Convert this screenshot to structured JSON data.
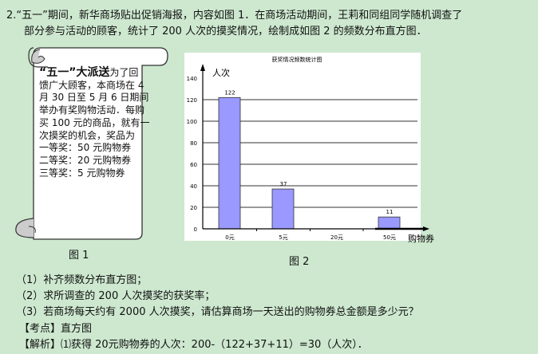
{
  "problem": {
    "line1": "2.“五一”期间，新华商场贴出促销海报，内容如图 1．在商场活动期间，王莉和同组同学随机调查了",
    "line2": "部分参与活动的顾客，统计了 200 人次的摸奖情况，绘制成如图 2 的频数分布直方图．"
  },
  "poster": {
    "headline": "“五一”大派送",
    "lines": [
      "为了回",
      "馈广大顾客，本商场在 4",
      "月 30 日至 5 月 6 日期间",
      "举办有奖购物活动．每购",
      "买 100 元的商品，就有一",
      " 次摸奖的机会，奖品为",
      "一等奖：50 元购物券",
      "二等奖：20 元购物券",
      "三等奖：5 元购物券"
    ],
    "caption": "图 1"
  },
  "chart_data": {
    "type": "bar",
    "title": "获奖情况频数统计图",
    "ylabel": "人次",
    "xlabel": "购物券",
    "categories": [
      "0元",
      "5元",
      "20元",
      "50元"
    ],
    "values": [
      122,
      37,
      null,
      11
    ],
    "data_labels": [
      "122",
      "37",
      "",
      "11"
    ],
    "ylim": [
      0,
      140
    ],
    "yticks": [
      0,
      20,
      40,
      60,
      80,
      100,
      120,
      140
    ],
    "grid": true,
    "bar_color": "#9999ff",
    "caption": "图 2"
  },
  "questions": [
    "（1）补齐频数分布直方图；",
    "（2）求所调查的 200 人次摸奖的获奖率；",
    "（3）若商场每天约有 2000 人次摸奖，请估算商场一天送出的购物券总金额是多少元？"
  ],
  "kaodian": "【考点】直方图",
  "jiexi": "【解析】⑴获得 20元购物券的人次：200-（122+37+11）=30（人次）．"
}
